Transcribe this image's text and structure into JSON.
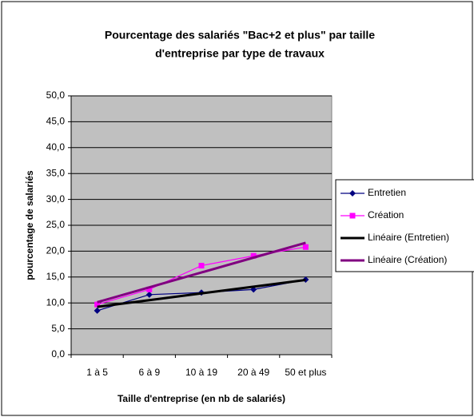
{
  "chart_data": {
    "type": "line",
    "title": [
      "Pourcentage des salariés \"Bac+2 et plus\" par taille",
      "d'entreprise par type de travaux"
    ],
    "xlabel": "Taille d'entreprise (en nb de salariés)",
    "ylabel": "pourcentage de salariés",
    "categories": [
      "1 à 5",
      "6 à 9",
      "10 à 19",
      "20 à 49",
      "50 et plus"
    ],
    "series": [
      {
        "name": "Entretien",
        "color": "#000080",
        "marker": "diamond",
        "values": [
          8.5,
          11.6,
          12.0,
          12.6,
          14.5
        ]
      },
      {
        "name": "Création",
        "color": "#ff00ff",
        "marker": "square",
        "values": [
          9.7,
          12.6,
          17.2,
          19.1,
          20.8
        ]
      },
      {
        "name": "Linéaire (Entretien)",
        "color": "#000000",
        "values": [
          9.24,
          10.54,
          11.84,
          13.14,
          14.44
        ]
      },
      {
        "name": "Linéaire (Création)",
        "color": "#800080",
        "values": [
          10.14,
          13.01,
          15.88,
          18.75,
          21.62
        ]
      }
    ],
    "ylim": [
      0,
      50
    ],
    "yticks": [
      {
        "value": 0,
        "label": "0,0"
      },
      {
        "value": 5,
        "label": "5,0"
      },
      {
        "value": 10,
        "label": "10,0"
      },
      {
        "value": 15,
        "label": "15,0"
      },
      {
        "value": 20,
        "label": "20,0"
      },
      {
        "value": 25,
        "label": "25,0"
      },
      {
        "value": 30,
        "label": "30,0"
      },
      {
        "value": 35,
        "label": "35,0"
      },
      {
        "value": 40,
        "label": "40,0"
      },
      {
        "value": 45,
        "label": "45,0"
      },
      {
        "value": 50,
        "label": "50,0"
      }
    ],
    "grid": true,
    "legend": "right",
    "background": "#c0c0c0"
  }
}
